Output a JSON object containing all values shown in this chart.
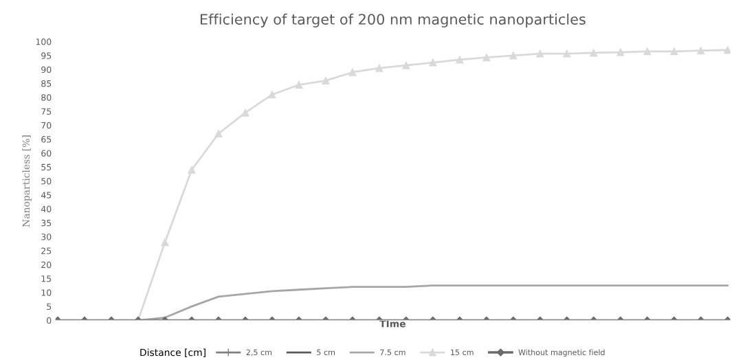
{
  "chart_data": {
    "type": "line",
    "title": "Efficiency of target of 200 nm magnetic nanoparticles",
    "xlabel": "TIme",
    "ylabel": "Nanoparticless [%]",
    "legend_title": "Distance [cm]",
    "legend": "bottom",
    "grid": false,
    "categories": [
      null,
      null,
      null,
      null,
      null,
      null,
      null,
      null,
      null,
      null,
      null,
      null,
      null,
      null,
      null,
      null,
      null,
      null,
      null,
      null,
      null,
      null,
      null,
      null,
      null,
      null
    ],
    "ylim": [
      0,
      100
    ],
    "yticks": [
      0,
      5,
      10,
      15,
      20,
      25,
      30,
      35,
      40,
      45,
      50,
      55,
      60,
      65,
      70,
      75,
      80,
      85,
      90,
      95,
      100
    ],
    "series": [
      {
        "name": "2,5 cm",
        "color": "#7f7f7f",
        "marker": "cross",
        "values": [
          null,
          null,
          null,
          null,
          null,
          null,
          null,
          null,
          null,
          null,
          null,
          null,
          null,
          null,
          null,
          null,
          null,
          null,
          null,
          null,
          null,
          null,
          null,
          null,
          null,
          null
        ]
      },
      {
        "name": "5 cm",
        "color": "#595959",
        "marker": "none",
        "values": [
          null,
          null,
          null,
          null,
          null,
          null,
          null,
          null,
          null,
          null,
          null,
          null,
          null,
          null,
          null,
          null,
          null,
          null,
          null,
          null,
          null,
          null,
          null,
          null,
          null,
          null
        ]
      },
      {
        "name": "7.5 cm",
        "color": "#a6a6a6",
        "marker": "none",
        "values": [
          0,
          0,
          0,
          0,
          1,
          5,
          8.5,
          9.5,
          10.5,
          11,
          11.5,
          12,
          12,
          12,
          12.5,
          12.5,
          12.5,
          12.5,
          12.5,
          12.5,
          12.5,
          12.5,
          12.5,
          12.5,
          12.5,
          12.5
        ]
      },
      {
        "name": "15 cm",
        "color": "#d9d9d9",
        "marker": "triangle",
        "values": [
          0,
          0,
          0,
          0,
          28,
          54,
          67,
          74.5,
          81,
          84.5,
          86,
          89,
          90.5,
          91.5,
          92.5,
          93.5,
          94.3,
          95,
          95.7,
          95.7,
          96,
          96.2,
          96.5,
          96.5,
          96.8,
          97
        ]
      },
      {
        "name": "Without magnetic field",
        "color": "#6b6b6b",
        "marker": "diamond",
        "values": [
          0,
          0,
          0,
          0,
          0,
          0,
          0,
          0,
          0,
          0,
          0,
          0,
          0,
          0,
          0,
          0,
          0,
          0,
          0,
          0,
          0,
          0,
          0,
          0,
          0,
          0
        ]
      }
    ]
  }
}
